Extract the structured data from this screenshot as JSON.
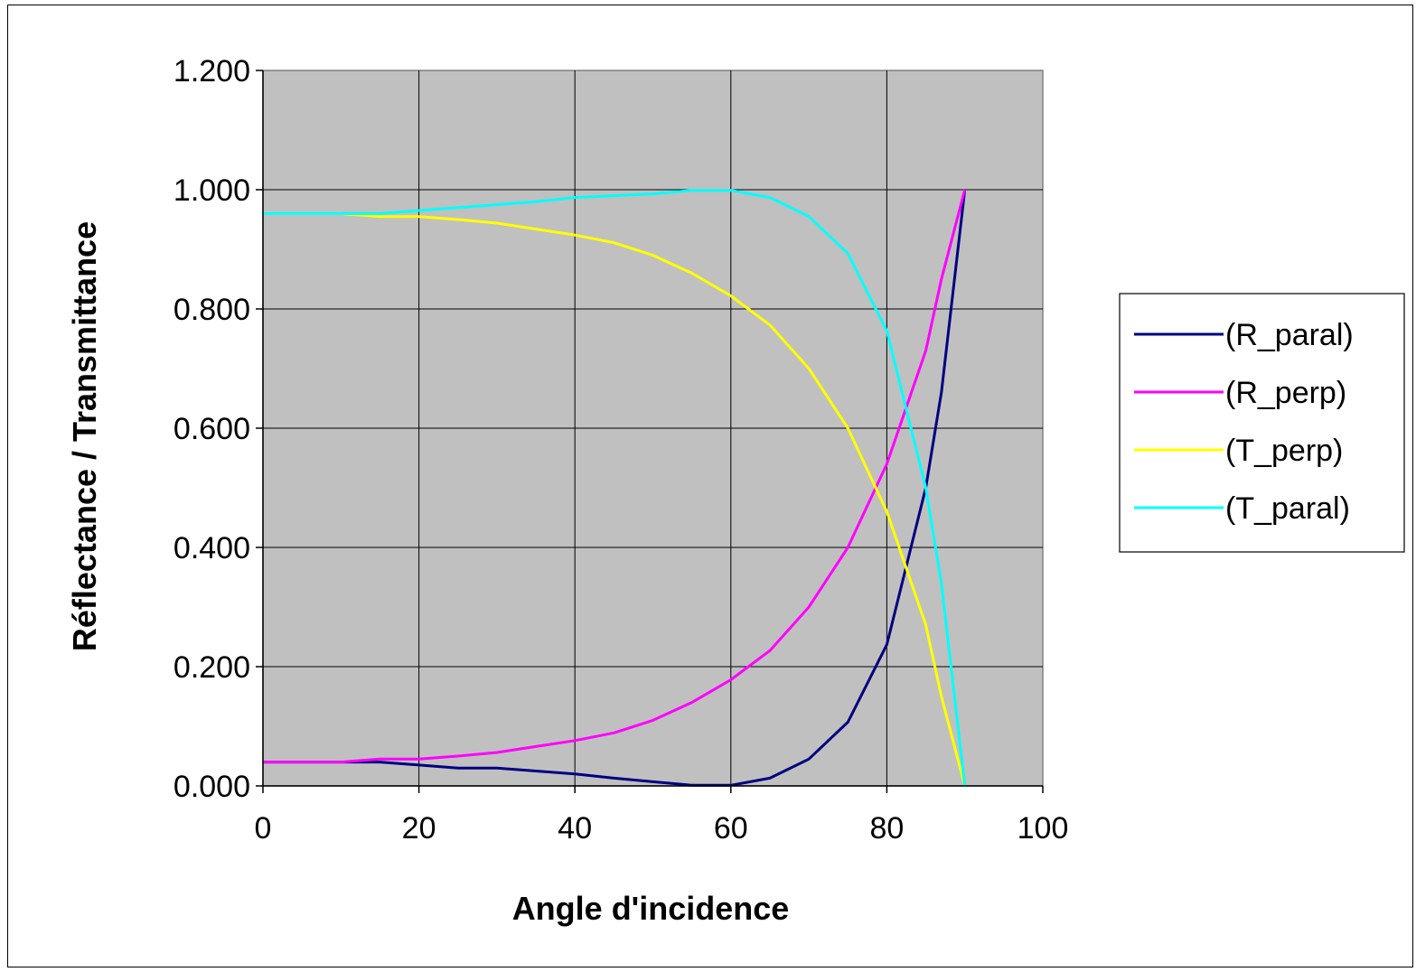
{
  "chart_data": {
    "type": "line",
    "title": "",
    "xlabel": "Angle d'incidence",
    "ylabel": "Réflectance / Transmittance",
    "xlim": [
      0,
      100
    ],
    "ylim": [
      0,
      1.2
    ],
    "x_ticks": [
      "0",
      "20",
      "40",
      "60",
      "80",
      "100"
    ],
    "y_ticks": [
      "0.000",
      "0.200",
      "0.400",
      "0.600",
      "0.800",
      "1.000",
      "1.200"
    ],
    "grid": true,
    "plot_background": "#c0c0c0",
    "legend_position": "right",
    "x": [
      0,
      5,
      10,
      15,
      20,
      25,
      30,
      35,
      40,
      45,
      50,
      55,
      60,
      65,
      70,
      75,
      80,
      85,
      87,
      90
    ],
    "series": [
      {
        "name": "(R_paral)",
        "color": "#000080",
        "values": [
          0.04,
          0.04,
          0.04,
          0.04,
          0.035,
          0.03,
          0.03,
          0.025,
          0.02,
          0.013,
          0.007,
          0.001,
          0.001,
          0.013,
          0.045,
          0.107,
          0.237,
          0.5,
          0.66,
          1.0
        ]
      },
      {
        "name": "(R_perp)",
        "color": "#ff00ff",
        "values": [
          0.04,
          0.04,
          0.04,
          0.045,
          0.045,
          0.05,
          0.056,
          0.066,
          0.076,
          0.089,
          0.11,
          0.14,
          0.178,
          0.227,
          0.3,
          0.4,
          0.54,
          0.73,
          0.85,
          1.0
        ]
      },
      {
        "name": "(T_perp)",
        "color": "#ffff00",
        "values": [
          0.96,
          0.96,
          0.96,
          0.955,
          0.955,
          0.95,
          0.944,
          0.934,
          0.924,
          0.911,
          0.89,
          0.86,
          0.822,
          0.773,
          0.7,
          0.6,
          0.46,
          0.27,
          0.15,
          0.0
        ]
      },
      {
        "name": "(T_paral)",
        "color": "#00ffff",
        "values": [
          0.96,
          0.96,
          0.96,
          0.96,
          0.965,
          0.97,
          0.975,
          0.98,
          0.987,
          0.99,
          0.993,
          0.999,
          0.999,
          0.987,
          0.955,
          0.893,
          0.763,
          0.5,
          0.34,
          0.0
        ]
      }
    ]
  }
}
